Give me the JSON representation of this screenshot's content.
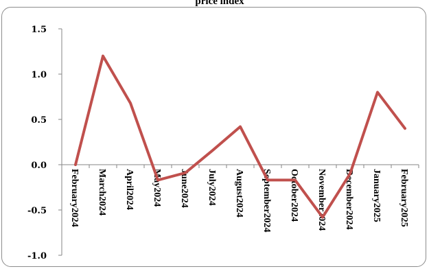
{
  "chart_data": {
    "type": "line",
    "title": "price index",
    "xlabel": "",
    "ylabel": "",
    "ylim": [
      -1.0,
      1.5
    ],
    "y_ticks": [
      "1.5",
      "1.0",
      "0.5",
      "0.0",
      "-0.5",
      "-1.0"
    ],
    "y_tick_values": [
      1.5,
      1.0,
      0.5,
      0.0,
      -0.5,
      -1.0
    ],
    "categories": [
      "February2024",
      "March2024",
      "April2024",
      "May2024",
      "June2024",
      "July2024",
      "August2024",
      "September2024",
      "October2024",
      "November2024",
      "December2024",
      "January2025",
      "February2025"
    ],
    "series": [
      {
        "values": [
          0.0,
          1.2,
          0.68,
          -0.17,
          -0.09,
          0.16,
          0.42,
          -0.17,
          -0.17,
          -0.58,
          -0.1,
          0.8,
          0.4
        ]
      }
    ],
    "grid": false,
    "legend": "none",
    "line_color": "#c0504d"
  }
}
